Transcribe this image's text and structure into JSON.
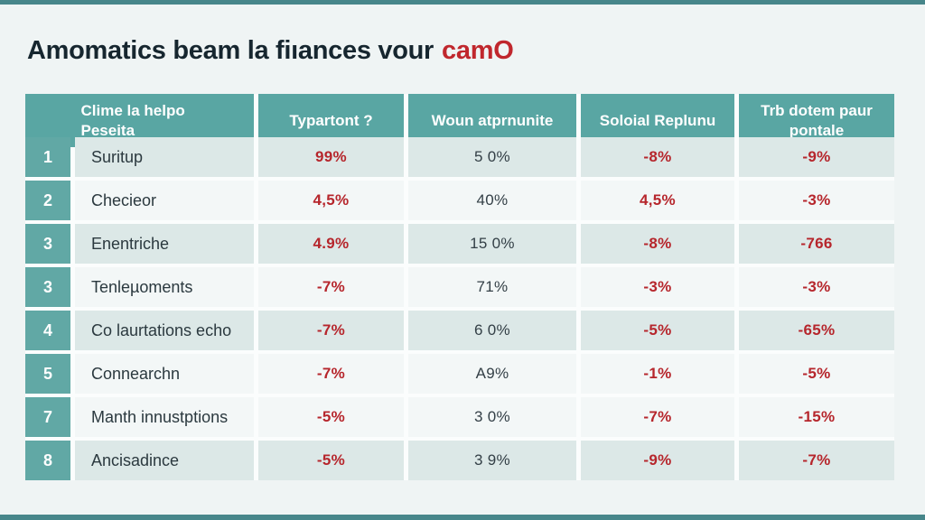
{
  "title": {
    "main": "Amomatics beam la fiıances vour",
    "accent": "camO"
  },
  "table": {
    "headers": [
      "Clime la helpo Peseita",
      "Typartont ?",
      "Woun atprnunite",
      "Soloial Replunu",
      "Trb dotem paur pontale"
    ],
    "rows": [
      {
        "num": "1",
        "name": "Suritup",
        "typartont": "99%",
        "woun": "5 0%",
        "soloial": "-8%",
        "trb": "-9%",
        "shade": "dark"
      },
      {
        "num": "2",
        "name": "Checieor",
        "typartont": "4,5%",
        "woun": "40%",
        "soloial": "4,5%",
        "trb": "-3%",
        "shade": "light"
      },
      {
        "num": "3",
        "name": "Enentriche",
        "typartont": "4.9%",
        "woun": "15 0%",
        "soloial": "-8%",
        "trb": "-766",
        "shade": "dark"
      },
      {
        "num": "3",
        "name": "Tenleµoments",
        "typartont": "-7%",
        "woun": "71%",
        "soloial": "-3%",
        "trb": "-3%",
        "shade": "light"
      },
      {
        "num": "4",
        "name": "Co laurtations echo",
        "typartont": "-7%",
        "woun": "6 0%",
        "soloial": "-5%",
        "trb": "-65%",
        "shade": "dark"
      },
      {
        "num": "5",
        "name": "Connearchn",
        "typartont": "-7%",
        "woun": "A9%",
        "soloial": "-1%",
        "trb": "-5%",
        "shade": "light"
      },
      {
        "num": "7",
        "name": "Manth innustptions",
        "typartont": "-5%",
        "woun": "3 0%",
        "soloial": "-7%",
        "trb": "-15%",
        "shade": "light"
      },
      {
        "num": "8",
        "name": "Ancisadince",
        "typartont": "-5%",
        "woun": "3 9%",
        "soloial": "-9%",
        "trb": "-7%",
        "shade": "dark"
      }
    ]
  },
  "colors": {
    "accent_teal": "#59a6a3",
    "border_teal": "#47868a",
    "negative_red": "#b6262c",
    "row_dark": "#dce8e7",
    "row_light": "#f3f7f7",
    "title_text": "#16262f"
  }
}
